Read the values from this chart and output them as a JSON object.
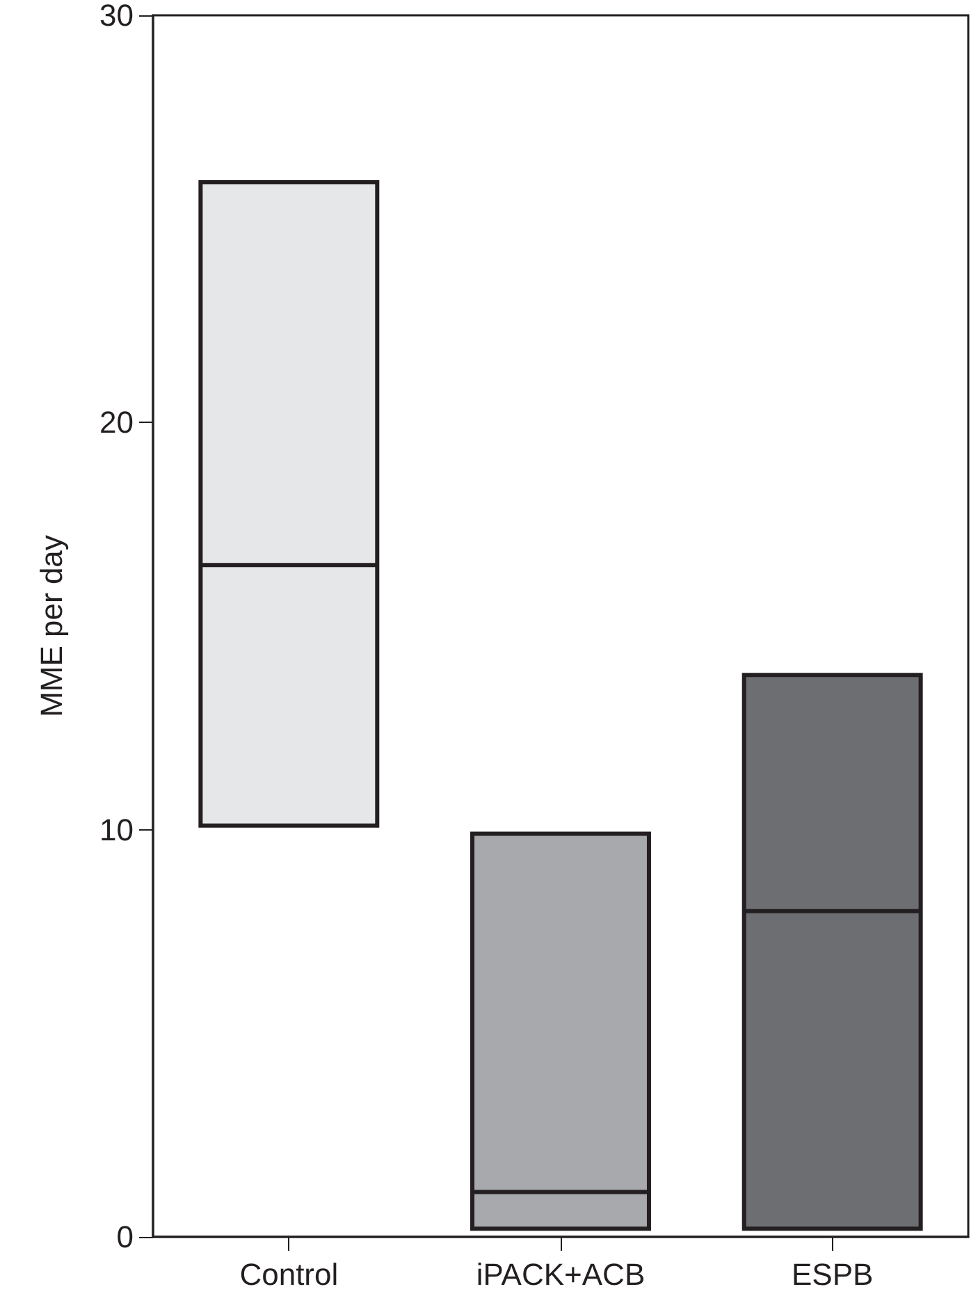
{
  "chart_data": {
    "type": "box",
    "ylabel": "MME per day",
    "categories": [
      "Control",
      "iPACK+ACB",
      "ESPB"
    ],
    "boxes": [
      {
        "low": 10.1,
        "q1": 10.1,
        "median": 16.5,
        "q3": 25.9,
        "high": 25.9
      },
      {
        "low": 0.2,
        "q1": 0.2,
        "median": 1.1,
        "q3": 9.9,
        "high": 9.9
      },
      {
        "low": 0.2,
        "q1": 0.2,
        "median": 8.0,
        "q3": 13.8,
        "high": 13.8
      }
    ],
    "colors": [
      "#e6e7e8",
      "#a7a9ac",
      "#6d6e71"
    ],
    "ylim": [
      0,
      30
    ],
    "yticks": [
      0,
      10,
      20,
      30
    ],
    "grid": false
  }
}
